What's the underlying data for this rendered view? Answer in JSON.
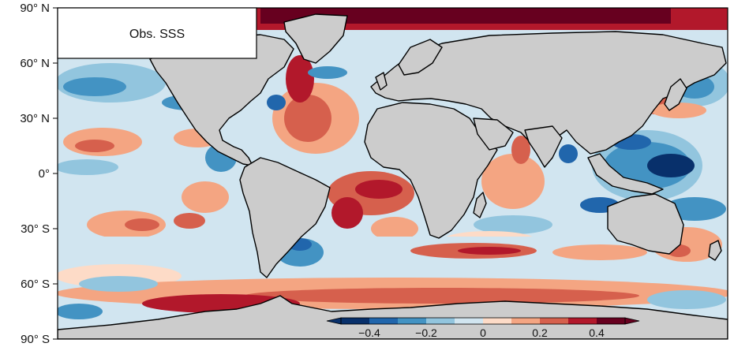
{
  "map": {
    "title": "Obs. SSS",
    "lat_labels": [
      "90° N",
      "60° N",
      "30° N",
      "0°",
      "30° S",
      "60° S",
      "90° S"
    ],
    "lat_values": [
      90,
      60,
      30,
      0,
      -30,
      -60,
      -90
    ],
    "projection": "equirectangular",
    "land_color": "#cccccc",
    "coastline_color": "#000000"
  },
  "colorbar": {
    "ticks": [
      "-0.4",
      "-0.2",
      "0",
      "0.2",
      "0.4"
    ],
    "tick_values": [
      -0.4,
      -0.2,
      0,
      0.2,
      0.4
    ],
    "range": [
      -0.5,
      0.5
    ],
    "extend": "both",
    "colors": [
      "#08306b",
      "#2166ac",
      "#4393c3",
      "#92c5de",
      "#d1e5f0",
      "#fddbc7",
      "#f4a582",
      "#d6604d",
      "#b2182b",
      "#67001f"
    ]
  }
}
